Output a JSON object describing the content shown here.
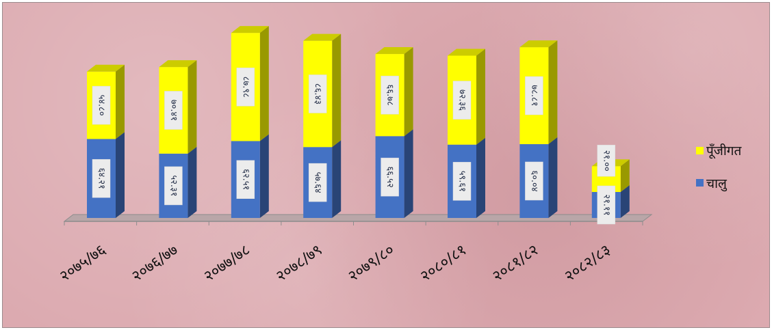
{
  "chart_data": {
    "type": "bar",
    "stacked": true,
    "three_d": true,
    "categories": [
      "२०७५/७६",
      "२०७६/७७",
      "२०७७/७८",
      "२०७८/७९",
      "२०७९/८०",
      "२०८०/८१",
      "२०८१/८२",
      "२०८२/८३"
    ],
    "value_labels": {
      "चालु": [
        "६४.२१",
        "५२.३१",
        "६२.५१",
        "५७.६४",
        "६६.५२",
        "५९.६१",
        "६०.०४",
        "२१.११"
      ],
      "पूँजीगत": [
        "५४.८०",
        "७०.४१",
        "८७.९८",
        "८६.४३",
        "६६.७८",
        "७२.३६",
        "७८.८१",
        "२१.००"
      ]
    },
    "series": [
      {
        "name": "चालु",
        "values": [
          64.21,
          52.31,
          62.51,
          57.64,
          66.52,
          59.61,
          60.04,
          21.11
        ]
      },
      {
        "name": "पूँजीगत",
        "values": [
          54.8,
          70.41,
          87.98,
          86.43,
          66.78,
          72.36,
          78.81,
          21.0
        ]
      }
    ],
    "colors": {
      "चालु": "#4472c4",
      "पूँजीगत": "#ffff00"
    },
    "ylim": [
      0,
      150
    ],
    "grid": false,
    "legend_position": "right"
  }
}
